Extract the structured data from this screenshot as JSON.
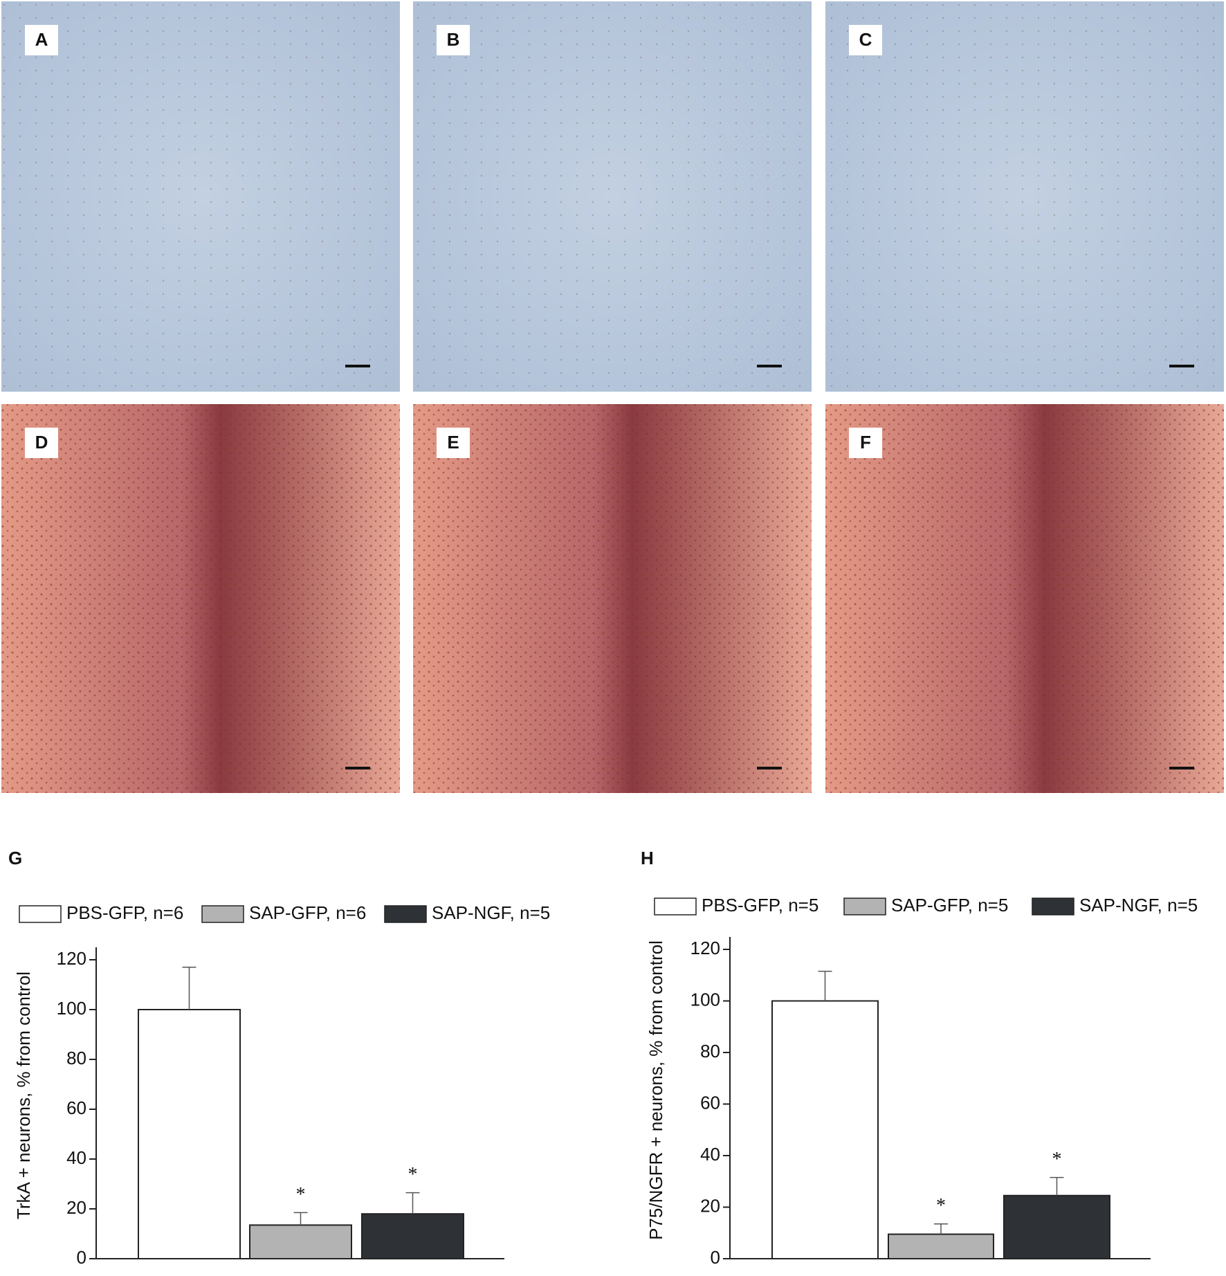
{
  "panels": [
    {
      "label": "A"
    },
    {
      "label": "B"
    },
    {
      "label": "C"
    },
    {
      "label": "D"
    },
    {
      "label": "E"
    },
    {
      "label": "F"
    }
  ],
  "chart_data": [
    {
      "type": "bar",
      "label": "G",
      "ylabel": "TrkA + neurons, % from control",
      "series": [
        {
          "name": "PBS-GFP, n=6",
          "color": "#ffffff",
          "values": [
            100
          ],
          "errors": [
            17
          ]
        },
        {
          "name": "SAP-GFP, n=6",
          "color": "#b3b3b3",
          "values": [
            13.5
          ],
          "errors": [
            5
          ]
        },
        {
          "name": "SAP-NGF, n=5",
          "color": "#2e3236",
          "values": [
            18
          ],
          "errors": [
            8.5
          ]
        }
      ],
      "annotations": [
        {
          "series": 1,
          "text": "*"
        },
        {
          "series": 2,
          "text": "*"
        }
      ],
      "ylim": [
        0,
        120
      ],
      "yticks": [
        0,
        20,
        40,
        60,
        80,
        100,
        120
      ]
    },
    {
      "type": "bar",
      "label": "H",
      "ylabel": "P75/NGFR + neurons, % from control",
      "series": [
        {
          "name": "PBS-GFP, n=5",
          "color": "#ffffff",
          "values": [
            100
          ],
          "errors": [
            11.5
          ]
        },
        {
          "name": "SAP-GFP, n=5",
          "color": "#b3b3b3",
          "values": [
            9.5
          ],
          "errors": [
            4
          ]
        },
        {
          "name": "SAP-NGF, n=5",
          "color": "#2e3236",
          "values": [
            24.5
          ],
          "errors": [
            7
          ]
        }
      ],
      "annotations": [
        {
          "series": 1,
          "text": "*"
        },
        {
          "series": 2,
          "text": "*"
        }
      ],
      "ylim": [
        0,
        120
      ],
      "yticks": [
        0,
        20,
        40,
        60,
        80,
        100,
        120
      ]
    }
  ]
}
